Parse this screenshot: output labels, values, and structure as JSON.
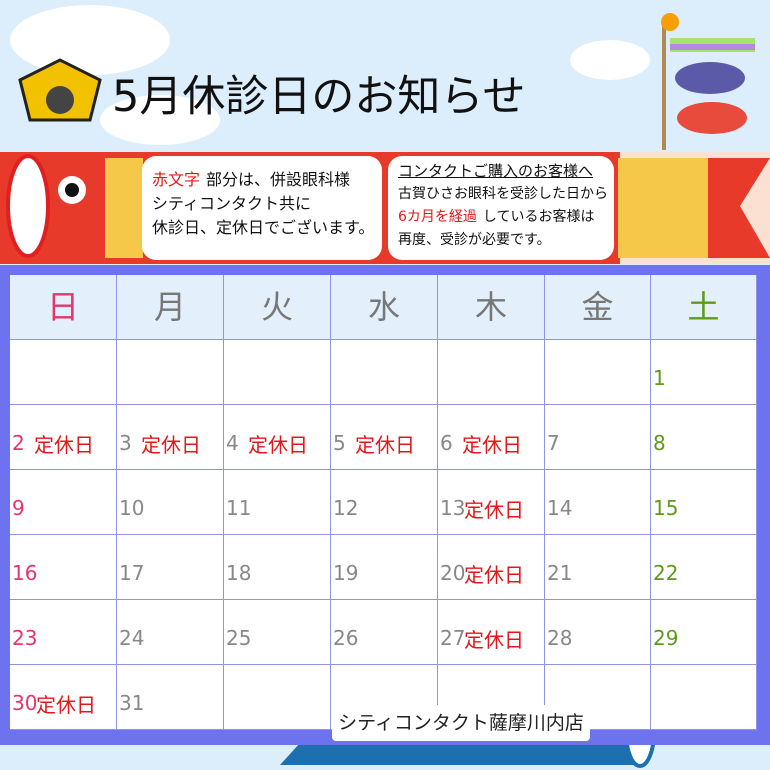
{
  "header": {
    "title": "5月休診日のお知らせ"
  },
  "notice_left": {
    "lines": [
      [
        {
          "text": "赤文字",
          "red": true
        },
        {
          "text": "部分は、併設眼科様"
        }
      ],
      [
        {
          "text": "シティコンタクト共に"
        }
      ],
      [
        {
          "text": "休診日、定休日でございます。"
        }
      ]
    ]
  },
  "notice_right": {
    "heading": "コンタクトご購入のお客様へ",
    "lines": [
      [
        {
          "text": "古賀ひさお眼科を受診した日から"
        }
      ],
      [
        {
          "text": "6カ月を経過",
          "red": true
        },
        {
          "text": "しているお客様は"
        }
      ],
      [
        {
          "text": "再度、受診が必要です。"
        }
      ]
    ]
  },
  "calendar": {
    "weekdays": [
      "日",
      "月",
      "火",
      "水",
      "木",
      "金",
      "土"
    ],
    "weeks": [
      [
        null,
        null,
        null,
        null,
        null,
        null,
        {
          "day": 1
        }
      ],
      [
        {
          "day": 2,
          "note": "定休日"
        },
        {
          "day": 3,
          "note": "定休日"
        },
        {
          "day": 4,
          "note": "定休日"
        },
        {
          "day": 5,
          "note": "定休日"
        },
        {
          "day": 6,
          "note": "定休日"
        },
        {
          "day": 7
        },
        {
          "day": 8
        }
      ],
      [
        {
          "day": 9
        },
        {
          "day": 10
        },
        {
          "day": 11
        },
        {
          "day": 12
        },
        {
          "day": 13,
          "note": "定休日"
        },
        {
          "day": 14
        },
        {
          "day": 15
        }
      ],
      [
        {
          "day": 16
        },
        {
          "day": 17
        },
        {
          "day": 18
        },
        {
          "day": 19
        },
        {
          "day": 20,
          "note": "定休日"
        },
        {
          "day": 21
        },
        {
          "day": 22
        }
      ],
      [
        {
          "day": 23
        },
        {
          "day": 24
        },
        {
          "day": 25
        },
        {
          "day": 26
        },
        {
          "day": 27,
          "note": "定休日"
        },
        {
          "day": 28
        },
        {
          "day": 29
        }
      ],
      [
        {
          "day": 30,
          "note": "定休日"
        },
        {
          "day": 31
        },
        null,
        null,
        null,
        null,
        null
      ]
    ]
  },
  "footer": {
    "store": "シティコンタクト薩摩川内店"
  }
}
